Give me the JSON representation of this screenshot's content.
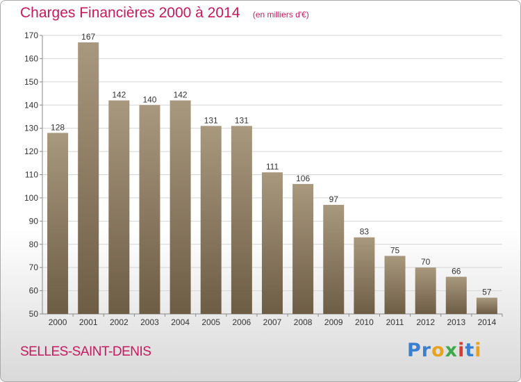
{
  "chart_data": {
    "type": "bar",
    "title": "Charges Financières 2000 à 2014",
    "subtitle": "(en milliers d'€)",
    "categories": [
      "2000",
      "2001",
      "2002",
      "2003",
      "2004",
      "2005",
      "2006",
      "2007",
      "2008",
      "2009",
      "2010",
      "2011",
      "2012",
      "2013",
      "2014"
    ],
    "values": [
      128,
      167,
      142,
      140,
      142,
      131,
      131,
      111,
      106,
      97,
      83,
      75,
      70,
      66,
      57
    ],
    "ylim": [
      50,
      170
    ],
    "yticks": [
      50,
      60,
      70,
      80,
      90,
      100,
      110,
      120,
      130,
      140,
      150,
      160,
      170
    ],
    "grid": true,
    "colors": {
      "bar_top": "#a8987e",
      "bar_bottom": "#6e5d45",
      "title": "#c8185e"
    }
  },
  "footer": {
    "town": "SELLES-SAINT-DENIS",
    "logo": [
      "Pr",
      "o",
      "x",
      "i",
      "t",
      "i"
    ]
  }
}
